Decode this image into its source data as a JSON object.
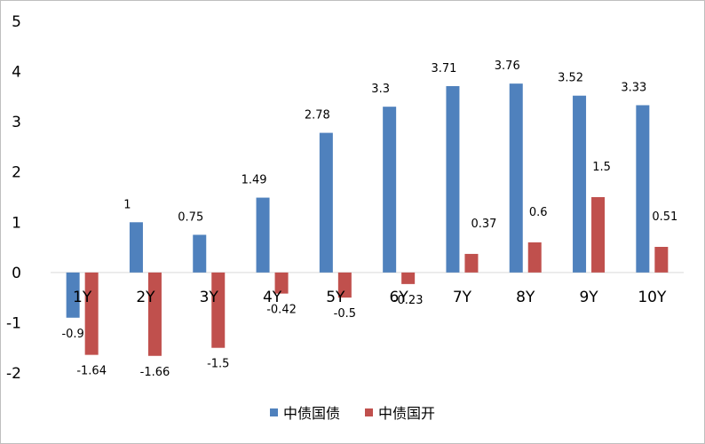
{
  "chart_data": {
    "type": "bar",
    "categories": [
      "1Y",
      "2Y",
      "3Y",
      "4Y",
      "5Y",
      "6Y",
      "7Y",
      "8Y",
      "9Y",
      "10Y"
    ],
    "series": [
      {
        "name": "中债国债",
        "color": "#4f81bd",
        "values": [
          -0.9,
          1,
          0.75,
          1.49,
          2.78,
          3.3,
          3.71,
          3.76,
          3.52,
          3.33
        ]
      },
      {
        "name": "中债国开",
        "color": "#c0504d",
        "values": [
          -1.64,
          -1.66,
          -1.5,
          -0.42,
          -0.5,
          -0.23,
          0.37,
          0.6,
          1.5,
          0.51
        ]
      }
    ],
    "ylim": [
      -2,
      5
    ],
    "yticks": [
      -2,
      -1,
      0,
      1,
      2,
      3,
      4,
      5
    ],
    "title": "",
    "xlabel": "",
    "ylabel": "",
    "grid": false,
    "legend": "bottom-center",
    "data_labels": true
  }
}
